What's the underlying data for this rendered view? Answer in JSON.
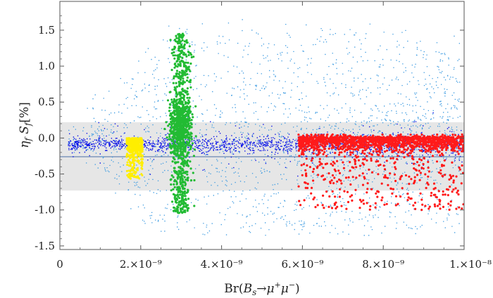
{
  "chart_data": {
    "type": "scatter",
    "title": "",
    "xlabel": "Br(B_s→μ⁺μ⁻)",
    "ylabel": "η_f S_f [%]",
    "xlim": [
      0,
      1e-08
    ],
    "ylim": [
      -1.55,
      1.9
    ],
    "x_ticks": [
      {
        "value": 0,
        "label": "0"
      },
      {
        "value": 2e-09,
        "label": "2.×10⁻⁹"
      },
      {
        "value": 4e-09,
        "label": "4.×10⁻⁹"
      },
      {
        "value": 6e-09,
        "label": "6.×10⁻⁹"
      },
      {
        "value": 8e-09,
        "label": "8.×10⁻⁹"
      },
      {
        "value": 1e-08,
        "label": "1.×10⁻⁸"
      }
    ],
    "y_ticks": [
      {
        "value": 1.5,
        "label": "1.5"
      },
      {
        "value": 1.0,
        "label": "1.0"
      },
      {
        "value": 0.5,
        "label": "0.5"
      },
      {
        "value": 0.0,
        "label": "0.0"
      },
      {
        "value": -0.5,
        "label": "-0.5"
      },
      {
        "value": -1.0,
        "label": "-1.0"
      },
      {
        "value": -1.5,
        "label": "-1.5"
      }
    ],
    "bands": [
      {
        "name": "experimental-band",
        "y_range": [
          -0.73,
          0.22
        ],
        "color": "#e6e6e6"
      }
    ],
    "reference_line": {
      "y": -0.26,
      "color": "#4a6fa5"
    },
    "series": [
      {
        "name": "light-blue-scan",
        "color": "#3b9ae1",
        "region": "broad scan, x 0–1e-8, y −1.3 to 1.85, cone around y≈0",
        "x_range": [
          0,
          1e-08
        ],
        "y_range": [
          -1.3,
          1.85
        ]
      },
      {
        "name": "dark-blue-scan",
        "color": "#0a12e8",
        "region": "narrow band around y≈−0.1",
        "x_range": [
          0,
          1e-08
        ],
        "y_range": [
          -0.3,
          0.1
        ]
      },
      {
        "name": "yellow-points",
        "color": "#ffee00",
        "x_range": [
          1.6e-09,
          2e-09
        ],
        "y_range": [
          -0.55,
          0.0
        ]
      },
      {
        "name": "green-points",
        "color": "#22bb33",
        "x_range": [
          2.9e-09,
          3.2e-09
        ],
        "y_range": [
          -1.05,
          1.45
        ]
      },
      {
        "name": "red-points",
        "color": "#ff1a1a",
        "x_range": [
          5.9e-09,
          1e-08
        ],
        "y_range": [
          -1.0,
          0.2
        ]
      }
    ]
  }
}
